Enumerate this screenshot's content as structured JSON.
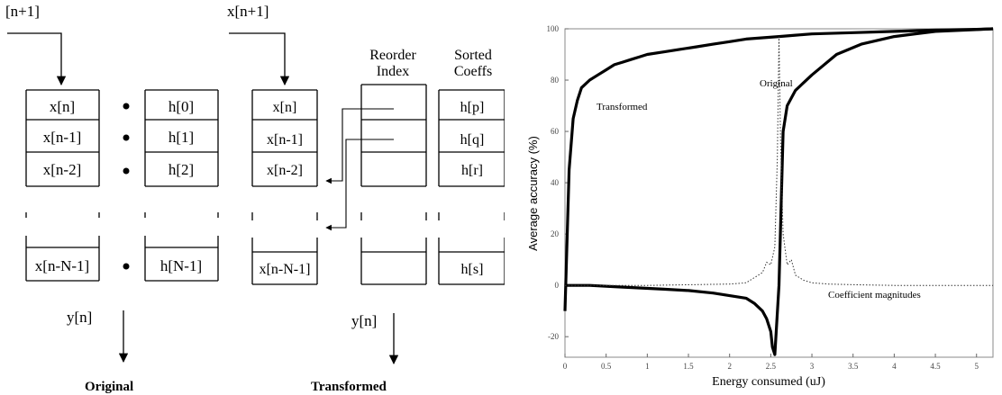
{
  "diagram": {
    "original": {
      "input_label": "[n+1]",
      "x_cells": [
        "x[n]",
        "x[n-1]",
        "x[n-2]",
        "x[n-N-1]"
      ],
      "h_cells": [
        "h[0]",
        "h[1]",
        "h[2]",
        "h[N-1]"
      ],
      "output_label": "y[n]",
      "caption": "Original"
    },
    "transformed": {
      "input_label": "x[n+1]",
      "x_cells": [
        "x[n]",
        "x[n-1]",
        "x[n-2]",
        "x[n-N-1]"
      ],
      "reorder_header_1": "Reorder",
      "reorder_header_2": "Index",
      "sorted_header_1": "Sorted",
      "sorted_header_2": "Coeffs",
      "sorted_cells": [
        "h[p]",
        "h[q]",
        "h[r]",
        "h[s]"
      ],
      "output_label": "y[n]",
      "caption": "Transformed"
    }
  },
  "chart_data": {
    "type": "line",
    "xlabel": "Energy consumed (uJ)",
    "ylabel": "Average accuracy (%)",
    "xlim": [
      0,
      5.2
    ],
    "ylim": [
      -28,
      100
    ],
    "xticks": [
      "0",
      "0.5",
      "1",
      "1.5",
      "2",
      "2.5",
      "3",
      "3.5",
      "4",
      "4.5",
      "5"
    ],
    "yticks": [
      "-20",
      "0",
      "20",
      "40",
      "60",
      "80",
      "100"
    ],
    "grid": false,
    "annotations": [
      "Transformed",
      "Original",
      "Coefficient magnitudes"
    ],
    "series": [
      {
        "name": "Transformed",
        "style": "thick-solid",
        "x": [
          0.0,
          0.05,
          0.1,
          0.15,
          0.2,
          0.3,
          0.4,
          0.5,
          0.6,
          0.7,
          0.8,
          0.9,
          1.0,
          1.2,
          1.4,
          1.6,
          1.8,
          2.0,
          2.2,
          2.4,
          2.6,
          2.8,
          3.0,
          3.5,
          4.0,
          4.5,
          5.0,
          5.2
        ],
        "y": [
          -10,
          45,
          65,
          72,
          77,
          80,
          82,
          84,
          86,
          87,
          88,
          89,
          90,
          91,
          92,
          93,
          94,
          95,
          96,
          96.5,
          97,
          97.5,
          98,
          98.5,
          99,
          99.5,
          99.8,
          100
        ]
      },
      {
        "name": "Original",
        "style": "thick-solid",
        "x": [
          0.0,
          0.3,
          0.6,
          0.9,
          1.2,
          1.5,
          1.8,
          2.0,
          2.2,
          2.3,
          2.4,
          2.45,
          2.5,
          2.52,
          2.55,
          2.6,
          2.65,
          2.7,
          2.8,
          3.0,
          3.3,
          3.6,
          4.0,
          4.5,
          5.0,
          5.2
        ],
        "y": [
          0,
          0,
          -0.5,
          -1,
          -1.5,
          -2,
          -3,
          -4,
          -5,
          -7,
          -10,
          -13,
          -18,
          -24,
          -27,
          0,
          60,
          70,
          76,
          82,
          90,
          94,
          97,
          99,
          99.7,
          100
        ]
      },
      {
        "name": "Coefficient magnitudes",
        "style": "dotted",
        "x": [
          0.0,
          1.0,
          2.0,
          2.2,
          2.3,
          2.4,
          2.45,
          2.5,
          2.55,
          2.58,
          2.6,
          2.62,
          2.65,
          2.7,
          2.75,
          2.8,
          2.9,
          3.0,
          3.2,
          3.6,
          4.0,
          5.0,
          5.2
        ],
        "y": [
          0,
          0,
          0.5,
          1,
          3,
          5,
          9,
          8,
          15,
          50,
          97,
          55,
          20,
          8,
          10,
          4,
          2,
          1,
          0.5,
          0.2,
          0,
          0,
          0
        ]
      }
    ]
  }
}
